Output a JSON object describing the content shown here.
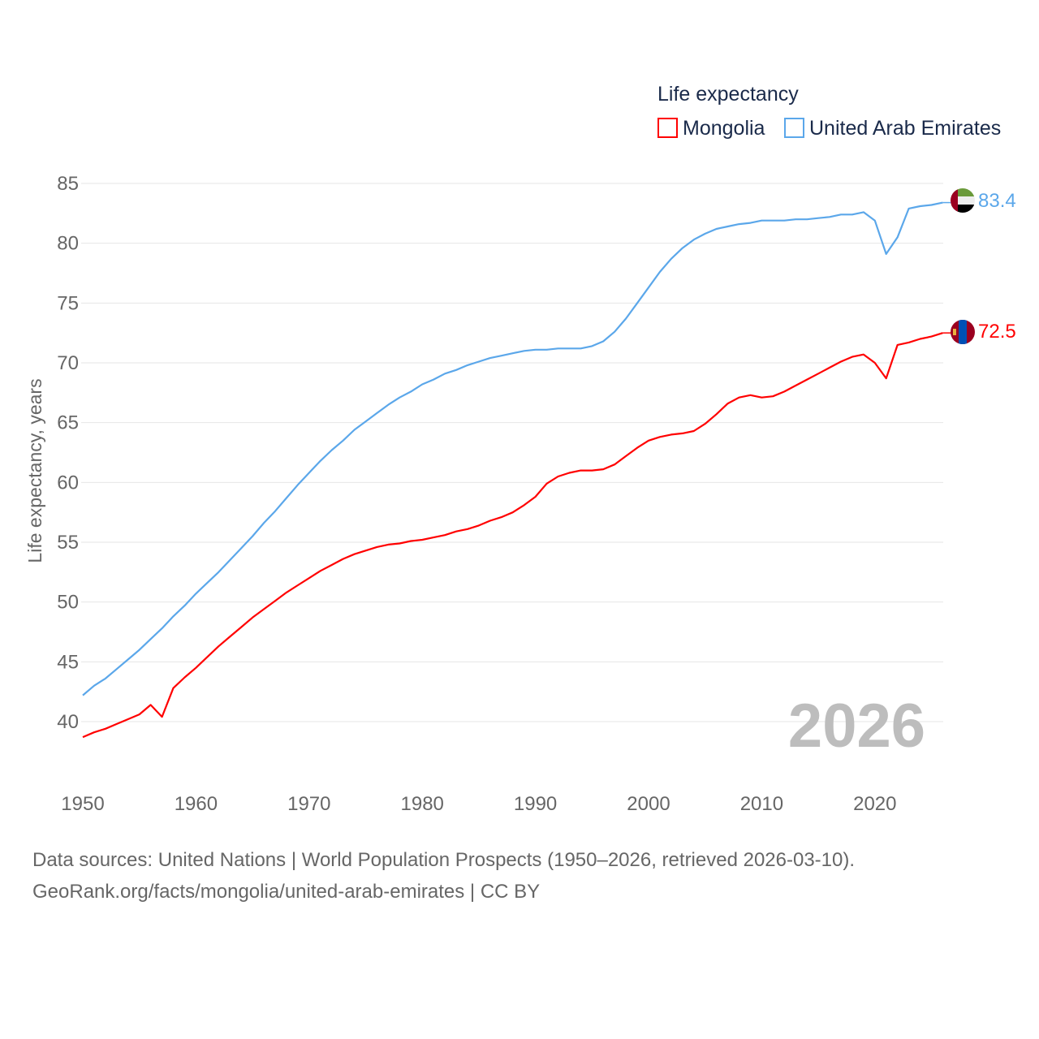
{
  "chart_data": {
    "type": "line",
    "legend_title": "Life expectancy",
    "legend_placement": "top-right",
    "ylabel": "Life expectancy, years",
    "xlabel": "",
    "xlim": [
      1950,
      2026
    ],
    "ylim": [
      36,
      86
    ],
    "x_ticks": [
      1950,
      1960,
      1970,
      1980,
      1990,
      2000,
      2010,
      2020
    ],
    "y_ticks": [
      40,
      45,
      50,
      55,
      60,
      65,
      70,
      75,
      80,
      85
    ],
    "grid": true,
    "year_watermark": "2026",
    "x_start": 1950,
    "series": [
      {
        "name": "Mongolia",
        "color": "#ff0000",
        "end_label": "72.5",
        "flag": "mongolia-flag",
        "values": [
          38.7,
          39.1,
          39.4,
          39.8,
          40.2,
          40.6,
          41.4,
          40.4,
          42.8,
          43.7,
          44.5,
          45.4,
          46.3,
          47.1,
          47.9,
          48.7,
          49.4,
          50.1,
          50.8,
          51.4,
          52.0,
          52.6,
          53.1,
          53.6,
          54.0,
          54.3,
          54.6,
          54.8,
          54.9,
          55.1,
          55.2,
          55.4,
          55.6,
          55.9,
          56.1,
          56.4,
          56.8,
          57.1,
          57.5,
          58.1,
          58.8,
          59.9,
          60.5,
          60.8,
          61.0,
          61.0,
          61.1,
          61.5,
          62.2,
          62.9,
          63.5,
          63.8,
          64.0,
          64.1,
          64.3,
          64.9,
          65.7,
          66.6,
          67.1,
          67.3,
          67.1,
          67.2,
          67.6,
          68.1,
          68.6,
          69.1,
          69.6,
          70.1,
          70.5,
          70.7,
          70.0,
          68.7,
          71.5,
          71.7,
          72.0,
          72.2,
          72.5
        ]
      },
      {
        "name": "United Arab Emirates",
        "color": "#5ba7ea",
        "end_label": "83.4",
        "flag": "uae-flag",
        "values": [
          42.2,
          43.0,
          43.6,
          44.4,
          45.2,
          46.0,
          46.9,
          47.8,
          48.8,
          49.7,
          50.7,
          51.6,
          52.5,
          53.5,
          54.5,
          55.5,
          56.6,
          57.6,
          58.7,
          59.8,
          60.8,
          61.8,
          62.7,
          63.5,
          64.4,
          65.1,
          65.8,
          66.5,
          67.1,
          67.6,
          68.2,
          68.6,
          69.1,
          69.4,
          69.8,
          70.1,
          70.4,
          70.6,
          70.8,
          71.0,
          71.1,
          71.1,
          71.2,
          71.2,
          71.2,
          71.4,
          71.8,
          72.6,
          73.7,
          75.0,
          76.3,
          77.6,
          78.7,
          79.6,
          80.3,
          80.8,
          81.2,
          81.4,
          81.6,
          81.7,
          81.9,
          81.9,
          81.9,
          82.0,
          82.0,
          82.1,
          82.2,
          82.4,
          82.4,
          82.6,
          81.9,
          79.1,
          80.5,
          82.9,
          83.1,
          83.2,
          83.4
        ]
      }
    ]
  },
  "footer": {
    "line1": "Data sources: United Nations | World Population Prospects (1950–2026, retrieved 2026-03-10).",
    "line2": "GeoRank.org/facts/mongolia/united-arab-emirates | CC BY"
  }
}
